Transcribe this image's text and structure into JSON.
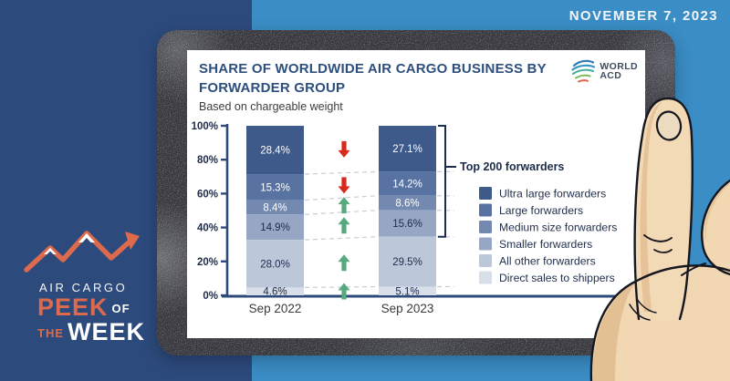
{
  "page": {
    "date": "NOVEMBER 7, 2023",
    "background_left_color": "#2c4a7c",
    "background_right_color": "#3a8dc5"
  },
  "brand_badge": {
    "line_top": "AIR CARGO",
    "peek": "PEEK",
    "of": "OF",
    "the": "THE",
    "week": "WEEK",
    "accent_color": "#dd6a4c"
  },
  "card": {
    "title_lines": [
      "SHARE OF WORLDWIDE AIR CARGO BUSINESS BY",
      "FORWARDER GROUP"
    ],
    "subtitle": "Based on chargeable weight",
    "logo": {
      "line1": "WORLD",
      "line2": "ACD"
    }
  },
  "chart_data": {
    "type": "bar",
    "stacked": true,
    "title": "Share of worldwide air cargo business by forwarder group",
    "categories": [
      "Sep 2022",
      "Sep 2023"
    ],
    "series": [
      {
        "name": "Ultra large forwarders",
        "values": [
          28.4,
          27.1
        ],
        "color": "#3d5a8b",
        "label_color": "#ffffff",
        "trend": "down"
      },
      {
        "name": "Large forwarders",
        "values": [
          15.3,
          14.2
        ],
        "color": "#5873a2",
        "label_color": "#ffffff",
        "trend": "down"
      },
      {
        "name": "Medium size forwarders",
        "values": [
          8.4,
          8.6
        ],
        "color": "#7389b0",
        "label_color": "#ffffff",
        "trend": "up"
      },
      {
        "name": "Smaller forwarders",
        "values": [
          14.9,
          15.6
        ],
        "color": "#95a7c4",
        "label_color": "#1c2b4a",
        "trend": "up"
      },
      {
        "name": "All other forwarders",
        "values": [
          28.0,
          29.5
        ],
        "color": "#bcc8da",
        "label_color": "#1c2b4a",
        "trend": "up"
      },
      {
        "name": "Direct sales to shippers",
        "values": [
          4.6,
          5.1
        ],
        "color": "#d9dfe9",
        "label_color": "#1c2b4a",
        "trend": "up"
      }
    ],
    "value_suffix": "%",
    "ylim": [
      0,
      100
    ],
    "y_ticks": [
      "0%",
      "20%",
      "40%",
      "60%",
      "80%",
      "100%"
    ],
    "annotation": {
      "label": "Top 200 forwarders",
      "covers_series": 4
    },
    "trend_colors": {
      "up": "#57a97e",
      "down": "#d8291f"
    },
    "axis_color": "#2e4a78",
    "legend_position": "right",
    "grid": false
  }
}
